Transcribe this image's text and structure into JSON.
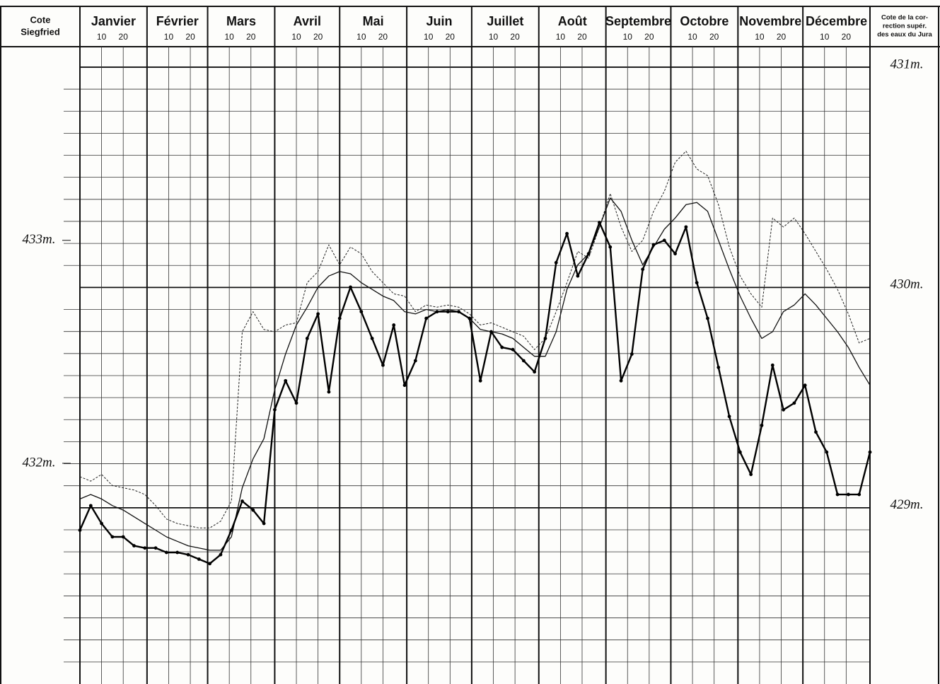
{
  "chart_data": {
    "type": "line",
    "left_header": [
      "Cote",
      "Siegfried"
    ],
    "right_header": [
      "Cote de la cor-",
      "rection supér.",
      "des eaux du Jura"
    ],
    "categories": [
      "Janvier",
      "Février",
      "Mars",
      "Avril",
      "Mai",
      "Juin",
      "Juillet",
      "Août",
      "Septembre",
      "Octobre",
      "Novembre",
      "Décembre"
    ],
    "xlim": [
      0,
      365
    ],
    "xticks": [
      0,
      31,
      59,
      90,
      120,
      151,
      181,
      212,
      243,
      273,
      304,
      334,
      365
    ],
    "day_ticks": [
      10,
      20
    ],
    "ylim": [
      431.01,
      433.84
    ],
    "yticks": [
      {
        "value": 432,
        "label": "432m."
      },
      {
        "value": 433,
        "label": "433m."
      }
    ],
    "y2lim": [
      428.2,
      431.064
    ],
    "y2ticks": [
      {
        "value": 429,
        "label": "429m."
      },
      {
        "value": 430,
        "label": "430m."
      },
      {
        "value": 431,
        "label": "431m."
      }
    ],
    "y2minor": [
      428.3,
      428.4,
      428.5,
      428.6,
      428.7,
      428.8,
      428.9,
      429.1,
      429.2,
      429.3,
      429.4,
      429.5,
      429.6,
      429.7,
      429.8,
      429.9,
      430.1,
      430.2,
      430.3,
      430.4,
      430.5,
      430.6,
      430.7,
      430.8,
      430.9
    ],
    "grid": true,
    "x": [
      0,
      5,
      10,
      15,
      20,
      25,
      30,
      35,
      40,
      45,
      50,
      55,
      60,
      65,
      70,
      75,
      80,
      85,
      90,
      95,
      100,
      105,
      110,
      115,
      120,
      125,
      130,
      135,
      140,
      145,
      150,
      155,
      160,
      165,
      170,
      175,
      180,
      185,
      190,
      195,
      200,
      205,
      210,
      215,
      220,
      225,
      230,
      235,
      240,
      245,
      250,
      255,
      260,
      265,
      270,
      275,
      280,
      285,
      290,
      295,
      300,
      305,
      310,
      315,
      320,
      325,
      330,
      335,
      340,
      345,
      350,
      355,
      360,
      365
    ],
    "series": [
      {
        "color": "#222222",
        "line_style": "dashed",
        "values": [
          431.94,
          431.92,
          431.95,
          431.9,
          431.89,
          431.88,
          431.86,
          431.81,
          431.75,
          431.73,
          431.72,
          431.71,
          431.71,
          431.74,
          431.83,
          432.59,
          432.68,
          432.6,
          432.59,
          432.62,
          432.63,
          432.81,
          432.86,
          432.98,
          432.89,
          432.97,
          432.94,
          432.86,
          432.81,
          432.76,
          432.75,
          432.68,
          432.71,
          432.7,
          432.71,
          432.7,
          432.67,
          432.62,
          432.63,
          432.61,
          432.59,
          432.57,
          432.51,
          432.56,
          432.68,
          432.81,
          432.95,
          432.92,
          433.06,
          433.21,
          433.06,
          432.95,
          433.0,
          433.13,
          433.22,
          433.35,
          433.4,
          433.32,
          433.29,
          433.16,
          432.97,
          432.84,
          432.76,
          432.7,
          433.1,
          433.06,
          433.1,
          433.03,
          432.95,
          432.87,
          432.78,
          432.67,
          432.54,
          432.56
        ]
      },
      {
        "color": "#111111",
        "line_style": "thin",
        "values": [
          431.84,
          431.86,
          431.84,
          431.81,
          431.79,
          431.76,
          431.73,
          431.7,
          431.67,
          431.65,
          431.63,
          431.62,
          431.61,
          431.61,
          431.67,
          431.89,
          432.02,
          432.11,
          432.33,
          432.49,
          432.62,
          432.7,
          432.79,
          432.84,
          432.86,
          432.85,
          432.81,
          432.78,
          432.75,
          432.73,
          432.68,
          432.67,
          432.69,
          432.68,
          432.69,
          432.68,
          432.65,
          432.6,
          432.59,
          432.58,
          432.56,
          432.52,
          432.48,
          432.48,
          432.59,
          432.78,
          432.89,
          432.94,
          433.06,
          433.19,
          433.13,
          433.0,
          432.89,
          432.97,
          433.05,
          433.1,
          433.16,
          433.17,
          433.13,
          433.0,
          432.87,
          432.75,
          432.65,
          432.56,
          432.59,
          432.68,
          432.71,
          432.76,
          432.71,
          432.65,
          432.59,
          432.52,
          432.43,
          432.35
        ]
      },
      {
        "color": "#000000",
        "line_style": "thick",
        "markers": true,
        "values": [
          431.7,
          431.81,
          431.73,
          431.67,
          431.67,
          431.63,
          431.62,
          431.62,
          431.6,
          431.6,
          431.59,
          431.57,
          431.55,
          431.59,
          431.7,
          431.83,
          431.79,
          431.73,
          432.24,
          432.37,
          432.27,
          432.56,
          432.67,
          432.32,
          432.65,
          432.79,
          432.68,
          432.56,
          432.44,
          432.62,
          432.35,
          432.46,
          432.65,
          432.68,
          432.68,
          432.68,
          432.65,
          432.37,
          432.59,
          432.52,
          432.51,
          432.46,
          432.41,
          432.56,
          432.9,
          433.03,
          432.84,
          432.94,
          433.08,
          432.97,
          432.37,
          432.49,
          432.87,
          432.98,
          433.0,
          432.94,
          433.06,
          432.81,
          432.65,
          432.43,
          432.21,
          432.05,
          431.95,
          432.17,
          432.44,
          432.24,
          432.27,
          432.35,
          432.14,
          432.05,
          431.86,
          431.86,
          431.86,
          432.05
        ]
      }
    ]
  }
}
